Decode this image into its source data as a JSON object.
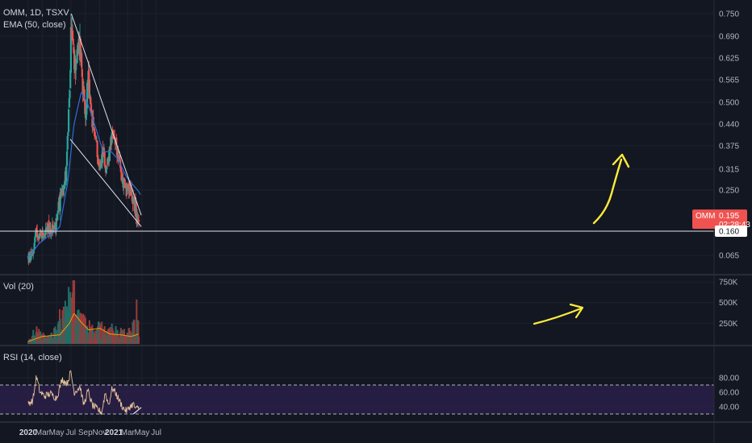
{
  "header": {
    "symbol_line": "OMM, 1D, TSXV",
    "ema_line": "EMA (50, close)",
    "vol_line": "Vol (20)",
    "rsi_line": "RSI (14, close)"
  },
  "colors": {
    "background": "#131722",
    "bull": "#26a69a",
    "bear": "#ef5350",
    "ema": "#2f6fd6",
    "vol_ma": "#ff9800",
    "rsi_line": "#e8c39a",
    "rsi_band": "#2a1f48",
    "annotation": "#ffeb3b",
    "trendline": "#e0e3eb",
    "price_badge": "#ef5350",
    "level_badge": "#ffffff"
  },
  "price_axis": {
    "ticks": [
      "0.750",
      "0.690",
      "0.625",
      "0.565",
      "0.500",
      "0.440",
      "0.375",
      "0.315",
      "0.250",
      "0.160",
      "0.065"
    ],
    "current_price_label": "OMM",
    "current_price": "0.195",
    "countdown": "02:28:43",
    "level_label": "0.160"
  },
  "volume_axis": {
    "ticks": [
      "750K",
      "500K",
      "250K"
    ]
  },
  "rsi_axis": {
    "ticks": [
      "80.00",
      "60.00",
      "40.00"
    ]
  },
  "time_axis": {
    "labels": [
      "2020",
      "Mar",
      "May",
      "Jul",
      "Sep",
      "Nov",
      "2021",
      "Mar",
      "May",
      "Jul"
    ]
  },
  "chart_data": {
    "type": "candlestick",
    "symbol": "OMM",
    "interval": "1D",
    "exchange": "TSXV",
    "price_range": [
      0.0,
      0.78
    ],
    "volume_range": [
      0,
      780000
    ],
    "rsi_range": [
      0,
      100
    ],
    "rsi_levels": [
      70,
      30
    ],
    "close_path": [
      {
        "x": "2020-01-01",
        "close": 0.055
      },
      {
        "x": "2020-01-20",
        "close": 0.065
      },
      {
        "x": "2020-02-01",
        "close": 0.15
      },
      {
        "x": "2020-02-20",
        "close": 0.145
      },
      {
        "x": "2020-03-15",
        "close": 0.155
      },
      {
        "x": "2020-04-10",
        "close": 0.16
      },
      {
        "x": "2020-05-01",
        "close": 0.17
      },
      {
        "x": "2020-05-20",
        "close": 0.24
      },
      {
        "x": "2020-06-10",
        "close": 0.3
      },
      {
        "x": "2020-06-25",
        "close": 0.5
      },
      {
        "x": "2020-07-03",
        "close": 0.73
      },
      {
        "x": "2020-07-15",
        "close": 0.6
      },
      {
        "x": "2020-07-28",
        "close": 0.63
      },
      {
        "x": "2020-08-08",
        "close": 0.68
      },
      {
        "x": "2020-08-22",
        "close": 0.55
      },
      {
        "x": "2020-09-01",
        "close": 0.44
      },
      {
        "x": "2020-09-12",
        "close": 0.58
      },
      {
        "x": "2020-09-25",
        "close": 0.46
      },
      {
        "x": "2020-10-15",
        "close": 0.4
      },
      {
        "x": "2020-11-01",
        "close": 0.31
      },
      {
        "x": "2020-11-15",
        "close": 0.37
      },
      {
        "x": "2020-12-01",
        "close": 0.3
      },
      {
        "x": "2020-12-20",
        "close": 0.4
      },
      {
        "x": "2021-01-05",
        "close": 0.39
      },
      {
        "x": "2021-01-20",
        "close": 0.35
      },
      {
        "x": "2021-02-05",
        "close": 0.28
      },
      {
        "x": "2021-02-20",
        "close": 0.26
      },
      {
        "x": "2021-03-10",
        "close": 0.25
      },
      {
        "x": "2021-03-25",
        "close": 0.23
      },
      {
        "x": "2021-04-10",
        "close": 0.2
      },
      {
        "x": "2021-04-18",
        "close": 0.195
      }
    ],
    "ema_path": [
      {
        "x": "2020-01-01",
        "value": 0.055
      },
      {
        "x": "2020-02-15",
        "value": 0.11
      },
      {
        "x": "2020-04-01",
        "value": 0.145
      },
      {
        "x": "2020-05-15",
        "value": 0.17
      },
      {
        "x": "2020-06-15",
        "value": 0.26
      },
      {
        "x": "2020-07-15",
        "value": 0.44
      },
      {
        "x": "2020-08-15",
        "value": 0.53
      },
      {
        "x": "2020-09-15",
        "value": 0.49
      },
      {
        "x": "2020-10-15",
        "value": 0.43
      },
      {
        "x": "2020-11-15",
        "value": 0.36
      },
      {
        "x": "2020-12-20",
        "value": 0.36
      },
      {
        "x": "2021-01-20",
        "value": 0.34
      },
      {
        "x": "2021-02-25",
        "value": 0.29
      },
      {
        "x": "2021-03-25",
        "value": 0.265
      },
      {
        "x": "2021-04-25",
        "value": 0.24
      }
    ],
    "volume_path": [
      {
        "x": "2020-01-01",
        "vol": 30000
      },
      {
        "x": "2020-02-10",
        "vol": 150000
      },
      {
        "x": "2020-04-01",
        "vol": 80000
      },
      {
        "x": "2020-05-20",
        "vol": 250000
      },
      {
        "x": "2020-06-25",
        "vol": 550000
      },
      {
        "x": "2020-07-10",
        "vol": 400000
      },
      {
        "x": "2020-08-15",
        "vol": 250000
      },
      {
        "x": "2020-10-01",
        "vol": 180000
      },
      {
        "x": "2020-11-15",
        "vol": 200000
      },
      {
        "x": "2021-01-01",
        "vol": 150000
      },
      {
        "x": "2021-03-01",
        "vol": 120000
      },
      {
        "x": "2021-04-15",
        "vol": 250000
      }
    ],
    "vol_ma_path": [
      {
        "x": "2020-01-01",
        "value": 30000
      },
      {
        "x": "2020-03-01",
        "value": 90000
      },
      {
        "x": "2020-05-15",
        "value": 110000
      },
      {
        "x": "2020-06-25",
        "value": 250000
      },
      {
        "x": "2020-07-15",
        "value": 370000
      },
      {
        "x": "2020-08-15",
        "value": 260000
      },
      {
        "x": "2020-09-15",
        "value": 170000
      },
      {
        "x": "2020-11-01",
        "value": 190000
      },
      {
        "x": "2020-12-15",
        "value": 120000
      },
      {
        "x": "2021-02-01",
        "value": 110000
      },
      {
        "x": "2021-03-15",
        "value": 90000
      },
      {
        "x": "2021-04-18",
        "value": 120000
      }
    ],
    "rsi_path": [
      {
        "x": "2020-01-01",
        "rsi": 45
      },
      {
        "x": "2020-01-20",
        "rsi": 48
      },
      {
        "x": "2020-02-05",
        "rsi": 82
      },
      {
        "x": "2020-02-20",
        "rsi": 60
      },
      {
        "x": "2020-03-10",
        "rsi": 55
      },
      {
        "x": "2020-04-05",
        "rsi": 58
      },
      {
        "x": "2020-05-01",
        "rsi": 52
      },
      {
        "x": "2020-05-25",
        "rsi": 78
      },
      {
        "x": "2020-06-15",
        "rsi": 72
      },
      {
        "x": "2020-07-01",
        "rsi": 88
      },
      {
        "x": "2020-07-15",
        "rsi": 60
      },
      {
        "x": "2020-08-10",
        "rsi": 68
      },
      {
        "x": "2020-08-25",
        "rsi": 42
      },
      {
        "x": "2020-09-12",
        "rsi": 62
      },
      {
        "x": "2020-10-01",
        "rsi": 42
      },
      {
        "x": "2020-10-25",
        "rsi": 36
      },
      {
        "x": "2020-11-10",
        "rsi": 32
      },
      {
        "x": "2020-11-25",
        "rsi": 60
      },
      {
        "x": "2020-12-10",
        "rsi": 42
      },
      {
        "x": "2020-12-25",
        "rsi": 66
      },
      {
        "x": "2021-01-10",
        "rsi": 58
      },
      {
        "x": "2021-01-25",
        "rsi": 48
      },
      {
        "x": "2021-02-10",
        "rsi": 38
      },
      {
        "x": "2021-02-25",
        "rsi": 34
      },
      {
        "x": "2021-03-10",
        "rsi": 40
      },
      {
        "x": "2021-03-25",
        "rsi": 44
      },
      {
        "x": "2021-04-05",
        "rsi": 36
      },
      {
        "x": "2021-04-18",
        "rsi": 40
      }
    ],
    "trendlines": [
      {
        "from": {
          "x": "2020-07-03",
          "price": 0.75
        },
        "to": {
          "x": "2021-04-28",
          "price": 0.195
        }
      },
      {
        "from": {
          "x": "2020-06-28",
          "price": 0.395
        },
        "to": {
          "x": "2021-04-28",
          "price": 0.17
        }
      },
      {
        "from": {
          "x": "2020-01-01",
          "price": 0.16
        },
        "to": {
          "x": "2021-12-31",
          "price": 0.16
        }
      }
    ],
    "rsi_trendline": {
      "from": {
        "x": "2021-03-25",
        "rsi": 30
      },
      "to": {
        "x": "2021-04-28",
        "rsi": 39
      }
    },
    "annotations": [
      "price-breakout-arrow",
      "volume-rise-arrow"
    ]
  }
}
